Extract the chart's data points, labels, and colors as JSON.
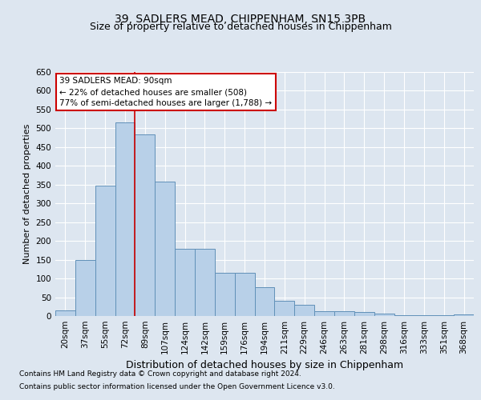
{
  "title1": "39, SADLERS MEAD, CHIPPENHAM, SN15 3PB",
  "title2": "Size of property relative to detached houses in Chippenham",
  "xlabel": "Distribution of detached houses by size in Chippenham",
  "ylabel": "Number of detached properties",
  "categories": [
    "20sqm",
    "37sqm",
    "55sqm",
    "72sqm",
    "89sqm",
    "107sqm",
    "124sqm",
    "142sqm",
    "159sqm",
    "176sqm",
    "194sqm",
    "211sqm",
    "229sqm",
    "246sqm",
    "263sqm",
    "281sqm",
    "298sqm",
    "316sqm",
    "333sqm",
    "351sqm",
    "368sqm"
  ],
  "values": [
    14,
    150,
    347,
    516,
    483,
    358,
    179,
    178,
    115,
    116,
    77,
    40,
    29,
    13,
    13,
    10,
    7,
    3,
    3,
    3,
    4
  ],
  "bar_color": "#b8d0e8",
  "bar_edge_color": "#6090b8",
  "annotation_text_line1": "39 SADLERS MEAD: 90sqm",
  "annotation_text_line2": "← 22% of detached houses are smaller (508)",
  "annotation_text_line3": "77% of semi-detached houses are larger (1,788) →",
  "annotation_box_facecolor": "#ffffff",
  "annotation_box_edgecolor": "#cc0000",
  "vline_color": "#cc0000",
  "vline_index": 3.5,
  "footer1": "Contains HM Land Registry data © Crown copyright and database right 2024.",
  "footer2": "Contains public sector information licensed under the Open Government Licence v3.0.",
  "ylim": [
    0,
    650
  ],
  "yticks": [
    0,
    50,
    100,
    150,
    200,
    250,
    300,
    350,
    400,
    450,
    500,
    550,
    600,
    650
  ],
  "bg_color": "#dde6f0",
  "plot_bg_color": "#dde6f0",
  "grid_color": "#ffffff",
  "title_fontsize": 10,
  "subtitle_fontsize": 9,
  "ylabel_fontsize": 8,
  "xlabel_fontsize": 9,
  "tick_fontsize": 7.5,
  "ann_fontsize": 7.5,
  "footer_fontsize": 6.5
}
